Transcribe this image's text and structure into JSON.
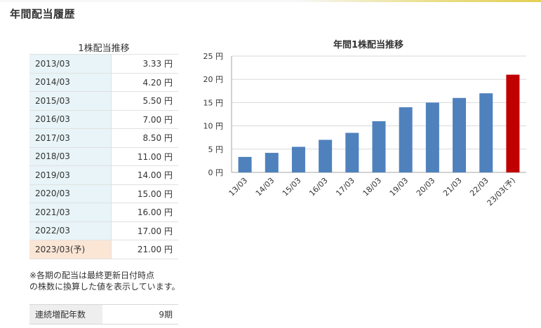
{
  "section": {
    "title": "年間配当履歴"
  },
  "table": {
    "caption": "1株配当推移",
    "rows": [
      {
        "year": "2013/03",
        "value": "3.33 円"
      },
      {
        "year": "2014/03",
        "value": "4.20 円"
      },
      {
        "year": "2015/03",
        "value": "5.50 円"
      },
      {
        "year": "2016/03",
        "value": "7.00 円"
      },
      {
        "year": "2017/03",
        "value": "8.50 円"
      },
      {
        "year": "2018/03",
        "value": "11.00 円"
      },
      {
        "year": "2019/03",
        "value": "14.00 円"
      },
      {
        "year": "2020/03",
        "value": "15.00 円"
      },
      {
        "year": "2021/03",
        "value": "16.00 円"
      },
      {
        "year": "2022/03",
        "value": "17.00 円"
      },
      {
        "year": "2023/03(予)",
        "value": "21.00 円"
      }
    ]
  },
  "note": {
    "line1": "※各期の配当は最終更新日付時点",
    "line2": "の株数に換算した値を表示しています。"
  },
  "streak": {
    "label": "連続増配年数",
    "value": "9期"
  },
  "colors": {
    "actual": "#4f81bd",
    "forecast": "#c00000",
    "forecast_row_bg": "#fbe5d5",
    "year_cell_bg": "#e8f4f7"
  },
  "chart_data": {
    "type": "bar",
    "title": "年間1株配当推移",
    "categories": [
      "13/03",
      "14/03",
      "15/03",
      "16/03",
      "17/03",
      "18/03",
      "19/03",
      "20/03",
      "21/03",
      "22/03",
      "23/03(予)"
    ],
    "values": [
      3.33,
      4.2,
      5.5,
      7.0,
      8.5,
      11.0,
      14.0,
      15.0,
      16.0,
      17.0,
      21.0
    ],
    "forecast_index": 10,
    "ylim": [
      0,
      25
    ],
    "yticks": [
      0,
      5,
      10,
      15,
      20,
      25
    ],
    "ytick_labels": [
      "0 円",
      "5 円",
      "10 円",
      "15 円",
      "20 円",
      "25 円"
    ],
    "grid": true,
    "legend": "none"
  }
}
